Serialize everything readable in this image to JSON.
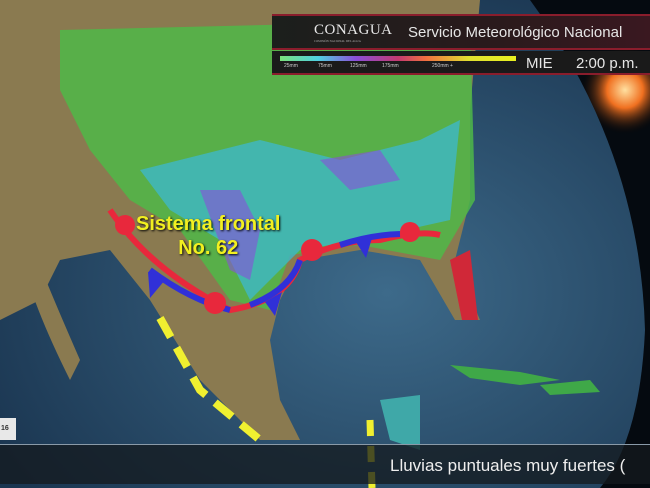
{
  "header": {
    "logo": "CONAGUA",
    "logo_subtitle": "COMISIÓN NACIONAL DEL AGUA",
    "title": "Servicio Meteorológico Nacional"
  },
  "legend": {
    "ticks": [
      "25mm",
      "75mm",
      "125mm",
      "175mm",
      "250mm +"
    ],
    "colors": [
      "#7be07b",
      "#4fd0e0",
      "#8a4fd8",
      "#c23a70",
      "#f07040",
      "#e8f020"
    ]
  },
  "status": {
    "day": "MIE",
    "time": "2:00 p.m."
  },
  "map": {
    "front_label_line1": "Sistema frontal",
    "front_label_line2": "No. 62",
    "front_colors": {
      "warm": "#e8283c",
      "cold": "#3030d8",
      "trough": "#f0f030"
    }
  },
  "ticker": {
    "tag": "16",
    "text": "Lluvias puntuales muy fuertes ("
  }
}
